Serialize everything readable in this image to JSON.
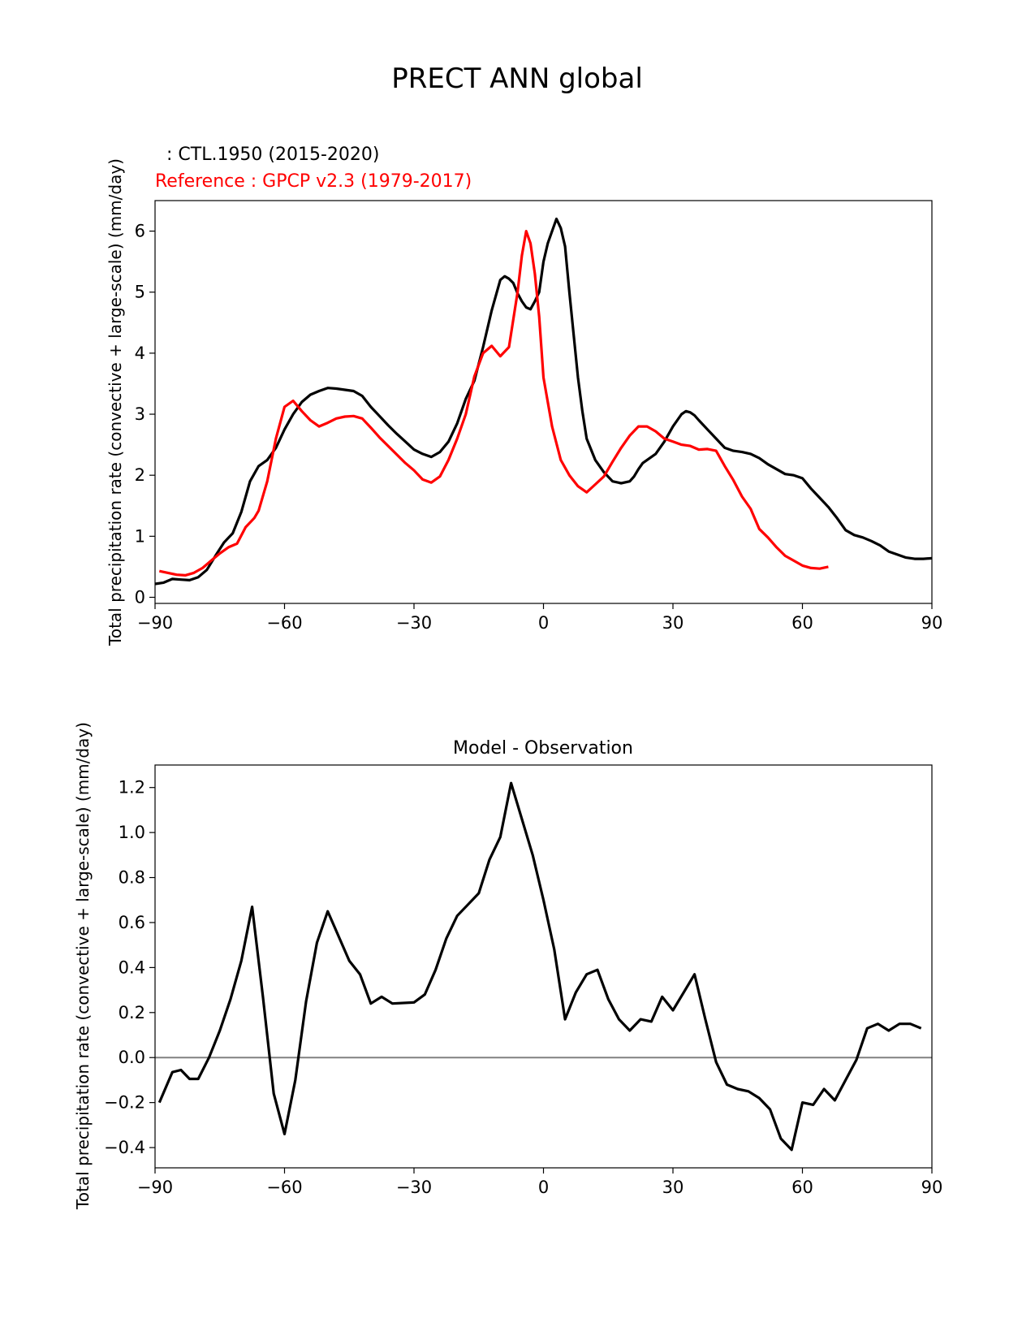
{
  "figure": {
    "title": "PRECT ANN global"
  },
  "chart_data": [
    {
      "type": "line",
      "legend_test": "  : CTL.1950 (2015-2020)",
      "legend_ref": "Reference : GPCP v2.3 (1979-2017)",
      "xlabel": "",
      "ylabel": "Total precipitation rate (convective + large-scale) (mm/day)",
      "xlim": [
        -90,
        90
      ],
      "ylim": [
        -0.1,
        6.5
      ],
      "xticks": [
        -90,
        -60,
        -30,
        0,
        30,
        60,
        90
      ],
      "xtick_labels": [
        "−90",
        "−60",
        "−30",
        "0",
        "30",
        "60",
        "90"
      ],
      "yticks": [
        0,
        1,
        2,
        3,
        4,
        5,
        6
      ],
      "ytick_labels": [
        "0",
        "1",
        "2",
        "3",
        "4",
        "5",
        "6"
      ],
      "series": [
        {
          "name": "CTL.1950 (2015-2020)",
          "color": "#000000",
          "points": [
            [
              -90,
              0.22
            ],
            [
              -88,
              0.24
            ],
            [
              -86,
              0.3
            ],
            [
              -84,
              0.29
            ],
            [
              -82,
              0.28
            ],
            [
              -80,
              0.33
            ],
            [
              -78,
              0.45
            ],
            [
              -76,
              0.68
            ],
            [
              -74,
              0.9
            ],
            [
              -72,
              1.05
            ],
            [
              -70,
              1.4
            ],
            [
              -68,
              1.9
            ],
            [
              -66,
              2.15
            ],
            [
              -64,
              2.25
            ],
            [
              -62,
              2.45
            ],
            [
              -60,
              2.75
            ],
            [
              -58,
              3.0
            ],
            [
              -56,
              3.2
            ],
            [
              -54,
              3.32
            ],
            [
              -52,
              3.38
            ],
            [
              -50,
              3.43
            ],
            [
              -48,
              3.42
            ],
            [
              -46,
              3.4
            ],
            [
              -44,
              3.38
            ],
            [
              -42,
              3.3
            ],
            [
              -40,
              3.12
            ],
            [
              -38,
              2.97
            ],
            [
              -36,
              2.82
            ],
            [
              -34,
              2.68
            ],
            [
              -32,
              2.55
            ],
            [
              -30,
              2.42
            ],
            [
              -28,
              2.35
            ],
            [
              -26,
              2.3
            ],
            [
              -24,
              2.38
            ],
            [
              -22,
              2.55
            ],
            [
              -20,
              2.85
            ],
            [
              -18,
              3.25
            ],
            [
              -16,
              3.55
            ],
            [
              -14,
              4.1
            ],
            [
              -12,
              4.7
            ],
            [
              -10,
              5.2
            ],
            [
              -9,
              5.26
            ],
            [
              -8,
              5.22
            ],
            [
              -7,
              5.15
            ],
            [
              -6,
              4.98
            ],
            [
              -5,
              4.85
            ],
            [
              -4,
              4.75
            ],
            [
              -3,
              4.72
            ],
            [
              -2,
              4.85
            ],
            [
              -1,
              5.0
            ],
            [
              0,
              5.5
            ],
            [
              1,
              5.8
            ],
            [
              2,
              6.0
            ],
            [
              3,
              6.2
            ],
            [
              4,
              6.05
            ],
            [
              5,
              5.75
            ],
            [
              6,
              5.0
            ],
            [
              7,
              4.3
            ],
            [
              8,
              3.6
            ],
            [
              9,
              3.05
            ],
            [
              10,
              2.6
            ],
            [
              12,
              2.25
            ],
            [
              14,
              2.05
            ],
            [
              16,
              1.9
            ],
            [
              18,
              1.87
            ],
            [
              20,
              1.9
            ],
            [
              21,
              1.98
            ],
            [
              22,
              2.1
            ],
            [
              23,
              2.2
            ],
            [
              24,
              2.25
            ],
            [
              26,
              2.35
            ],
            [
              28,
              2.55
            ],
            [
              30,
              2.8
            ],
            [
              32,
              3.0
            ],
            [
              33,
              3.05
            ],
            [
              34,
              3.03
            ],
            [
              35,
              2.98
            ],
            [
              36,
              2.9
            ],
            [
              38,
              2.75
            ],
            [
              40,
              2.6
            ],
            [
              42,
              2.45
            ],
            [
              44,
              2.4
            ],
            [
              46,
              2.38
            ],
            [
              48,
              2.35
            ],
            [
              50,
              2.28
            ],
            [
              52,
              2.18
            ],
            [
              54,
              2.1
            ],
            [
              56,
              2.02
            ],
            [
              58,
              2.0
            ],
            [
              60,
              1.95
            ],
            [
              62,
              1.78
            ],
            [
              64,
              1.63
            ],
            [
              66,
              1.48
            ],
            [
              68,
              1.3
            ],
            [
              70,
              1.1
            ],
            [
              72,
              1.02
            ],
            [
              74,
              0.98
            ],
            [
              76,
              0.92
            ],
            [
              78,
              0.85
            ],
            [
              80,
              0.75
            ],
            [
              82,
              0.7
            ],
            [
              84,
              0.65
            ],
            [
              86,
              0.63
            ],
            [
              88,
              0.63
            ],
            [
              90,
              0.64
            ]
          ]
        },
        {
          "name": "GPCP v2.3 (1979-2017)",
          "color": "#ff0000",
          "points": [
            [
              -89,
              0.43
            ],
            [
              -87,
              0.4
            ],
            [
              -85,
              0.37
            ],
            [
              -83,
              0.36
            ],
            [
              -81,
              0.4
            ],
            [
              -79,
              0.48
            ],
            [
              -77,
              0.6
            ],
            [
              -75,
              0.72
            ],
            [
              -73,
              0.82
            ],
            [
              -71,
              0.88
            ],
            [
              -69,
              1.15
            ],
            [
              -67,
              1.3
            ],
            [
              -66,
              1.42
            ],
            [
              -64,
              1.9
            ],
            [
              -62,
              2.6
            ],
            [
              -60,
              3.12
            ],
            [
              -58,
              3.22
            ],
            [
              -56,
              3.05
            ],
            [
              -54,
              2.9
            ],
            [
              -52,
              2.8
            ],
            [
              -50,
              2.86
            ],
            [
              -48,
              2.93
            ],
            [
              -46,
              2.96
            ],
            [
              -44,
              2.97
            ],
            [
              -42,
              2.93
            ],
            [
              -40,
              2.78
            ],
            [
              -38,
              2.62
            ],
            [
              -36,
              2.48
            ],
            [
              -34,
              2.34
            ],
            [
              -32,
              2.2
            ],
            [
              -30,
              2.08
            ],
            [
              -28,
              1.93
            ],
            [
              -26,
              1.88
            ],
            [
              -24,
              1.98
            ],
            [
              -22,
              2.25
            ],
            [
              -20,
              2.6
            ],
            [
              -18,
              3.0
            ],
            [
              -16,
              3.62
            ],
            [
              -14,
              4.0
            ],
            [
              -12,
              4.12
            ],
            [
              -10,
              3.95
            ],
            [
              -8,
              4.1
            ],
            [
              -6,
              5.0
            ],
            [
              -5,
              5.6
            ],
            [
              -4,
              6.0
            ],
            [
              -3,
              5.8
            ],
            [
              -2,
              5.3
            ],
            [
              -1,
              4.6
            ],
            [
              0,
              3.6
            ],
            [
              2,
              2.8
            ],
            [
              4,
              2.25
            ],
            [
              6,
              2.0
            ],
            [
              8,
              1.82
            ],
            [
              10,
              1.72
            ],
            [
              12,
              1.85
            ],
            [
              14,
              1.98
            ],
            [
              16,
              2.22
            ],
            [
              18,
              2.45
            ],
            [
              20,
              2.65
            ],
            [
              22,
              2.8
            ],
            [
              24,
              2.8
            ],
            [
              26,
              2.72
            ],
            [
              28,
              2.6
            ],
            [
              30,
              2.55
            ],
            [
              32,
              2.5
            ],
            [
              34,
              2.48
            ],
            [
              36,
              2.42
            ],
            [
              38,
              2.43
            ],
            [
              40,
              2.4
            ],
            [
              42,
              2.15
            ],
            [
              44,
              1.92
            ],
            [
              46,
              1.65
            ],
            [
              48,
              1.45
            ],
            [
              50,
              1.12
            ],
            [
              52,
              0.98
            ],
            [
              54,
              0.82
            ],
            [
              56,
              0.68
            ],
            [
              58,
              0.6
            ],
            [
              60,
              0.52
            ],
            [
              62,
              0.48
            ],
            [
              64,
              0.47
            ],
            [
              66,
              0.5
            ]
          ]
        }
      ]
    },
    {
      "type": "line",
      "title": "Model - Observation",
      "xlabel": "",
      "ylabel": "Total precipitation rate (convective + large-scale) (mm/day)",
      "xlim": [
        -90,
        90
      ],
      "ylim": [
        -0.49,
        1.3
      ],
      "xticks": [
        -90,
        -60,
        -30,
        0,
        30,
        60,
        90
      ],
      "xtick_labels": [
        "−90",
        "−60",
        "−30",
        "0",
        "30",
        "60",
        "90"
      ],
      "yticks": [
        -0.4,
        -0.2,
        0.0,
        0.2,
        0.4,
        0.6,
        0.8,
        1.0,
        1.2
      ],
      "ytick_labels": [
        "−0.4",
        "−0.2",
        "0.0",
        "0.2",
        "0.4",
        "0.6",
        "0.8",
        "1.0",
        "1.2"
      ],
      "zero_line_color": "#808080",
      "series": [
        {
          "name": "Model - Observation",
          "color": "#000000",
          "points": [
            [
              -89,
              -0.2
            ],
            [
              -86,
              -0.065
            ],
            [
              -84,
              -0.055
            ],
            [
              -82,
              -0.095
            ],
            [
              -80,
              -0.095
            ],
            [
              -77.5,
              0.0
            ],
            [
              -75,
              0.12
            ],
            [
              -72.5,
              0.26
            ],
            [
              -70,
              0.43
            ],
            [
              -67.5,
              0.67
            ],
            [
              -65,
              0.27
            ],
            [
              -62.5,
              -0.16
            ],
            [
              -60,
              -0.34
            ],
            [
              -57.5,
              -0.1
            ],
            [
              -55,
              0.25
            ],
            [
              -52.5,
              0.51
            ],
            [
              -50,
              0.65
            ],
            [
              -47.5,
              0.54
            ],
            [
              -45,
              0.43
            ],
            [
              -42.5,
              0.37
            ],
            [
              -40,
              0.24
            ],
            [
              -37.5,
              0.27
            ],
            [
              -35,
              0.24
            ],
            [
              -30,
              0.245
            ],
            [
              -27.5,
              0.28
            ],
            [
              -25,
              0.39
            ],
            [
              -22.5,
              0.53
            ],
            [
              -20,
              0.63
            ],
            [
              -17.5,
              0.68
            ],
            [
              -15,
              0.73
            ],
            [
              -12.5,
              0.88
            ],
            [
              -10,
              0.98
            ],
            [
              -7.5,
              1.22
            ],
            [
              -5,
              1.06
            ],
            [
              -2.5,
              0.9
            ],
            [
              0,
              0.7
            ],
            [
              2.5,
              0.48
            ],
            [
              5,
              0.17
            ],
            [
              7.5,
              0.29
            ],
            [
              10,
              0.37
            ],
            [
              12.5,
              0.39
            ],
            [
              15,
              0.26
            ],
            [
              17.5,
              0.17
            ],
            [
              20,
              0.12
            ],
            [
              22.5,
              0.17
            ],
            [
              25,
              0.16
            ],
            [
              27.5,
              0.27
            ],
            [
              30,
              0.21
            ],
            [
              32.5,
              0.29
            ],
            [
              35,
              0.37
            ],
            [
              37.5,
              0.17
            ],
            [
              40,
              -0.02
            ],
            [
              42.5,
              -0.12
            ],
            [
              45,
              -0.14
            ],
            [
              47.5,
              -0.15
            ],
            [
              50,
              -0.18
            ],
            [
              52.5,
              -0.23
            ],
            [
              55,
              -0.36
            ],
            [
              57.5,
              -0.41
            ],
            [
              60,
              -0.2
            ],
            [
              62.5,
              -0.21
            ],
            [
              65,
              -0.14
            ],
            [
              67.5,
              -0.19
            ],
            [
              70,
              -0.1
            ],
            [
              72.5,
              -0.01
            ],
            [
              75,
              0.13
            ],
            [
              77.5,
              0.15
            ],
            [
              80,
              0.12
            ],
            [
              82.5,
              0.15
            ],
            [
              85,
              0.15
            ],
            [
              87.5,
              0.13
            ]
          ]
        }
      ]
    }
  ]
}
